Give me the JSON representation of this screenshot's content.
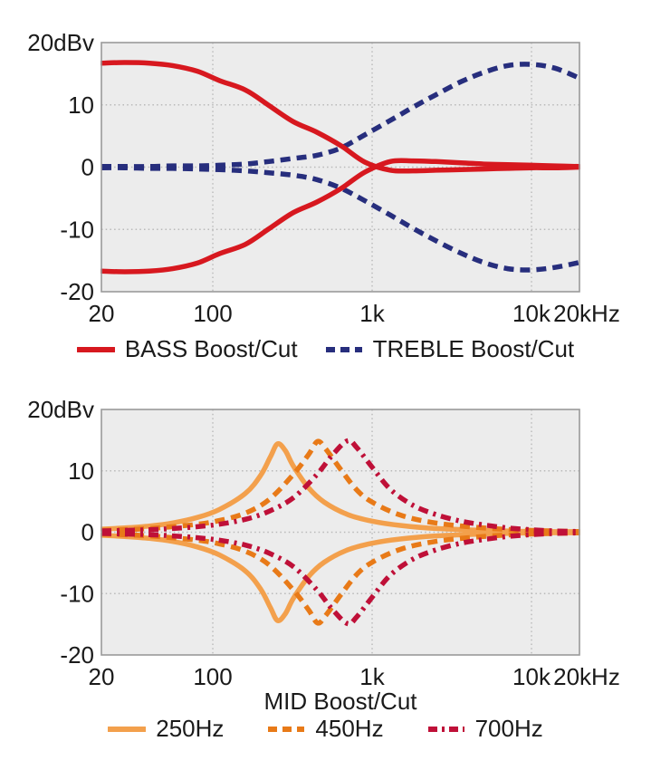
{
  "page": {
    "background": "#ffffff",
    "plot_background": "#ececec",
    "grid_color": "#b9b9b9",
    "frame_color": "#9a9a9a",
    "text_color": "#1a1a1a"
  },
  "chart_data": [
    {
      "type": "line",
      "title": "",
      "xlabel": "",
      "ylabel": "",
      "x_scale": "log",
      "x_range": [
        20,
        20000
      ],
      "y_range": [
        -20,
        20
      ],
      "x_ticks": [
        {
          "value": 20,
          "label": "20"
        },
        {
          "value": 100,
          "label": "100"
        },
        {
          "value": 1000,
          "label": "1k"
        },
        {
          "value": 10000,
          "label": "10k"
        },
        {
          "value": 20000,
          "label": "20kHz"
        }
      ],
      "y_ticks": [
        {
          "value": 20,
          "label": "20dBv"
        },
        {
          "value": 10,
          "label": "10"
        },
        {
          "value": 0,
          "label": "0"
        },
        {
          "value": -10,
          "label": "-10"
        },
        {
          "value": -20,
          "label": "-20"
        }
      ],
      "grid_x": [
        100,
        1000,
        10000
      ],
      "grid_y": [
        10,
        0,
        -10
      ],
      "grid": true,
      "legend_position": "bottom",
      "series": [
        {
          "name": "BASS Boost/Cut",
          "color": "#d7181f",
          "style": "solid",
          "curves": {
            "boost": [
              [
                20,
                16.7
              ],
              [
                28,
                16.8
              ],
              [
                40,
                16.7
              ],
              [
                56,
                16.3
              ],
              [
                80,
                15.4
              ],
              [
                110,
                13.9
              ],
              [
                160,
                12.4
              ],
              [
                225,
                9.9
              ],
              [
                320,
                7.3
              ],
              [
                450,
                5.6
              ],
              [
                640,
                3.4
              ],
              [
                900,
                0.8
              ],
              [
                1300,
                -0.5
              ],
              [
                1800,
                -0.6
              ],
              [
                2500,
                -0.5
              ],
              [
                3600,
                -0.4
              ],
              [
                5000,
                -0.3
              ],
              [
                7100,
                -0.2
              ],
              [
                10000,
                -0.1
              ],
              [
                14000,
                -0.1
              ],
              [
                20000,
                0
              ]
            ],
            "cut": [
              [
                20,
                -16.7
              ],
              [
                28,
                -16.8
              ],
              [
                40,
                -16.7
              ],
              [
                56,
                -16.3
              ],
              [
                80,
                -15.4
              ],
              [
                110,
                -13.9
              ],
              [
                160,
                -12.4
              ],
              [
                225,
                -9.9
              ],
              [
                320,
                -7.3
              ],
              [
                450,
                -5.6
              ],
              [
                640,
                -3.4
              ],
              [
                900,
                -0.8
              ],
              [
                1300,
                0.9
              ],
              [
                1800,
                1.0
              ],
              [
                2500,
                0.9
              ],
              [
                3600,
                0.7
              ],
              [
                5000,
                0.5
              ],
              [
                7100,
                0.4
              ],
              [
                10000,
                0.3
              ],
              [
                14000,
                0.2
              ],
              [
                20000,
                0.1
              ]
            ]
          }
        },
        {
          "name": "TREBLE Boost/Cut",
          "color": "#272e7d",
          "style": "dashed",
          "curves": {
            "boost": [
              [
                20,
                0.1
              ],
              [
                28,
                0.1
              ],
              [
                40,
                0.1
              ],
              [
                56,
                0.2
              ],
              [
                80,
                0.2
              ],
              [
                110,
                0.3
              ],
              [
                160,
                0.5
              ],
              [
                225,
                0.9
              ],
              [
                320,
                1.4
              ],
              [
                450,
                1.9
              ],
              [
                640,
                3.1
              ],
              [
                900,
                5.2
              ],
              [
                1300,
                7.5
              ],
              [
                1800,
                9.6
              ],
              [
                2500,
                11.6
              ],
              [
                3600,
                13.7
              ],
              [
                5000,
                15.2
              ],
              [
                7100,
                16.3
              ],
              [
                10000,
                16.5
              ],
              [
                14000,
                15.9
              ],
              [
                20000,
                14.3
              ]
            ],
            "cut": [
              [
                20,
                -0.1
              ],
              [
                28,
                -0.1
              ],
              [
                40,
                -0.2
              ],
              [
                56,
                -0.2
              ],
              [
                80,
                -0.3
              ],
              [
                110,
                -0.4
              ],
              [
                160,
                -0.6
              ],
              [
                225,
                -0.9
              ],
              [
                320,
                -1.3
              ],
              [
                450,
                -2.0
              ],
              [
                640,
                -3.4
              ],
              [
                900,
                -5.4
              ],
              [
                1300,
                -7.7
              ],
              [
                1800,
                -9.8
              ],
              [
                2500,
                -11.8
              ],
              [
                3600,
                -13.8
              ],
              [
                5000,
                -15.3
              ],
              [
                7100,
                -16.3
              ],
              [
                10000,
                -16.5
              ],
              [
                14000,
                -16.1
              ],
              [
                20000,
                -15.3
              ]
            ]
          }
        }
      ]
    },
    {
      "type": "line",
      "title": "",
      "xlabel": "MID Boost/Cut",
      "ylabel": "",
      "x_scale": "log",
      "x_range": [
        20,
        20000
      ],
      "y_range": [
        -20,
        20
      ],
      "x_ticks": [
        {
          "value": 20,
          "label": "20"
        },
        {
          "value": 100,
          "label": "100"
        },
        {
          "value": 1000,
          "label": "1k"
        },
        {
          "value": 10000,
          "label": "10k"
        },
        {
          "value": 20000,
          "label": "20kHz"
        }
      ],
      "y_ticks": [
        {
          "value": 20,
          "label": "20dBv"
        },
        {
          "value": 10,
          "label": "10"
        },
        {
          "value": 0,
          "label": "0"
        },
        {
          "value": -10,
          "label": "-10"
        },
        {
          "value": -20,
          "label": "-20"
        }
      ],
      "grid_x": [
        100,
        1000,
        10000
      ],
      "grid_y": [
        10,
        0,
        -10
      ],
      "grid": true,
      "legend_position": "bottom",
      "series": [
        {
          "name": "250Hz",
          "color": "#f3a04c",
          "style": "solid",
          "curves": {
            "boost": [
              [
                20,
                0.5
              ],
              [
                28,
                0.7
              ],
              [
                40,
                1.0
              ],
              [
                56,
                1.5
              ],
              [
                80,
                2.4
              ],
              [
                110,
                3.7
              ],
              [
                160,
                6.3
              ],
              [
                200,
                9.3
              ],
              [
                230,
                12.3
              ],
              [
                255,
                14.4
              ],
              [
                285,
                13.3
              ],
              [
                320,
                10.8
              ],
              [
                400,
                7.2
              ],
              [
                500,
                4.9
              ],
              [
                700,
                2.9
              ],
              [
                1000,
                1.8
              ],
              [
                1500,
                1.1
              ],
              [
                2500,
                0.6
              ],
              [
                5000,
                0.3
              ],
              [
                10000,
                0.1
              ],
              [
                20000,
                0.1
              ]
            ],
            "cut": [
              [
                20,
                -0.5
              ],
              [
                28,
                -0.7
              ],
              [
                40,
                -1.0
              ],
              [
                56,
                -1.5
              ],
              [
                80,
                -2.4
              ],
              [
                110,
                -3.7
              ],
              [
                160,
                -6.3
              ],
              [
                200,
                -9.3
              ],
              [
                230,
                -12.3
              ],
              [
                255,
                -14.4
              ],
              [
                285,
                -13.3
              ],
              [
                320,
                -10.8
              ],
              [
                400,
                -7.2
              ],
              [
                500,
                -4.9
              ],
              [
                700,
                -2.9
              ],
              [
                1000,
                -1.8
              ],
              [
                1500,
                -1.1
              ],
              [
                2500,
                -0.6
              ],
              [
                5000,
                -0.3
              ],
              [
                10000,
                -0.1
              ],
              [
                20000,
                -0.1
              ]
            ]
          }
        },
        {
          "name": "450Hz",
          "color": "#e87a18",
          "style": "dashed",
          "curves": {
            "boost": [
              [
                20,
                0.3
              ],
              [
                28,
                0.4
              ],
              [
                40,
                0.6
              ],
              [
                56,
                0.9
              ],
              [
                80,
                1.3
              ],
              [
                110,
                1.9
              ],
              [
                160,
                3.1
              ],
              [
                225,
                5.3
              ],
              [
                320,
                9.4
              ],
              [
                400,
                12.7
              ],
              [
                455,
                14.8
              ],
              [
                510,
                13.6
              ],
              [
                640,
                10.1
              ],
              [
                800,
                6.9
              ],
              [
                1000,
                4.9
              ],
              [
                1500,
                2.8
              ],
              [
                2500,
                1.5
              ],
              [
                5000,
                0.7
              ],
              [
                10000,
                0.3
              ],
              [
                20000,
                0.1
              ]
            ],
            "cut": [
              [
                20,
                -0.3
              ],
              [
                28,
                -0.4
              ],
              [
                40,
                -0.6
              ],
              [
                56,
                -0.9
              ],
              [
                80,
                -1.3
              ],
              [
                110,
                -1.9
              ],
              [
                160,
                -3.1
              ],
              [
                225,
                -5.3
              ],
              [
                320,
                -9.4
              ],
              [
                400,
                -12.7
              ],
              [
                455,
                -14.8
              ],
              [
                510,
                -13.6
              ],
              [
                640,
                -10.1
              ],
              [
                800,
                -6.9
              ],
              [
                1000,
                -4.9
              ],
              [
                1500,
                -2.8
              ],
              [
                2500,
                -1.5
              ],
              [
                5000,
                -0.7
              ],
              [
                10000,
                -0.3
              ],
              [
                20000,
                -0.1
              ]
            ]
          }
        },
        {
          "name": "700Hz",
          "color": "#bf1038",
          "style": "dash-dot",
          "curves": {
            "boost": [
              [
                20,
                0.2
              ],
              [
                28,
                0.3
              ],
              [
                40,
                0.4
              ],
              [
                56,
                0.6
              ],
              [
                80,
                0.9
              ],
              [
                110,
                1.3
              ],
              [
                160,
                2.1
              ],
              [
                225,
                3.4
              ],
              [
                320,
                5.6
              ],
              [
                450,
                9.4
              ],
              [
                560,
                12.5
              ],
              [
                700,
                14.9
              ],
              [
                800,
                13.8
              ],
              [
                1000,
                10.6
              ],
              [
                1300,
                7.0
              ],
              [
                1800,
                4.4
              ],
              [
                2500,
                2.9
              ],
              [
                3600,
                1.8
              ],
              [
                5000,
                1.2
              ],
              [
                7100,
                0.7
              ],
              [
                10000,
                0.4
              ],
              [
                14000,
                0.2
              ],
              [
                20000,
                0.1
              ]
            ],
            "cut": [
              [
                20,
                -0.2
              ],
              [
                28,
                -0.3
              ],
              [
                40,
                -0.4
              ],
              [
                56,
                -0.6
              ],
              [
                80,
                -0.9
              ],
              [
                110,
                -1.3
              ],
              [
                160,
                -2.1
              ],
              [
                225,
                -3.4
              ],
              [
                320,
                -5.6
              ],
              [
                450,
                -9.4
              ],
              [
                560,
                -12.5
              ],
              [
                700,
                -14.9
              ],
              [
                800,
                -13.8
              ],
              [
                1000,
                -10.6
              ],
              [
                1300,
                -7.0
              ],
              [
                1800,
                -4.4
              ],
              [
                2500,
                -2.9
              ],
              [
                3600,
                -1.8
              ],
              [
                5000,
                -1.2
              ],
              [
                7100,
                -0.7
              ],
              [
                10000,
                -0.4
              ],
              [
                14000,
                -0.2
              ],
              [
                20000,
                -0.1
              ]
            ]
          }
        }
      ]
    }
  ]
}
